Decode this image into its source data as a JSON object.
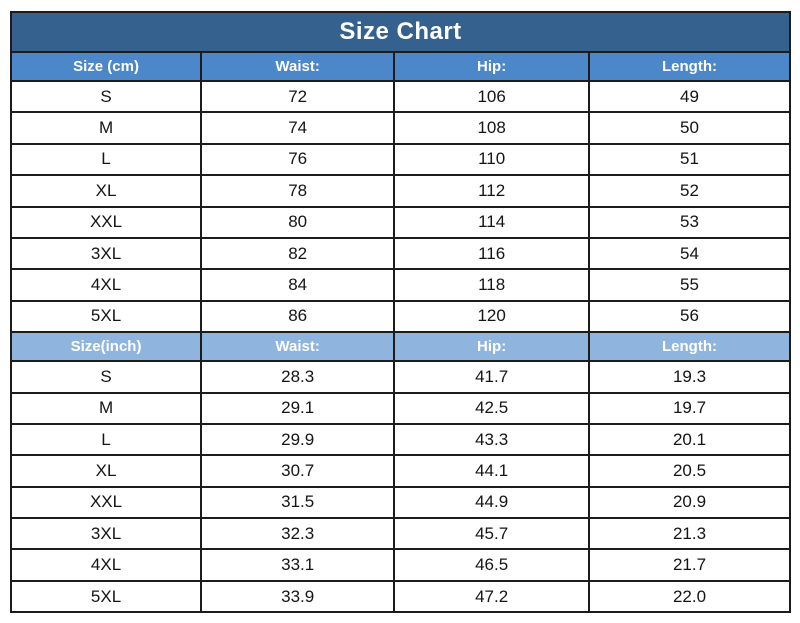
{
  "title": "Size Chart",
  "colors": {
    "title_bg": "#35618E",
    "header_cm_bg": "#4C87C9",
    "header_inch_bg": "#8FB5DF",
    "header_text": "#FFFFFF",
    "cell_text": "#141414",
    "border": "#1C1C1C",
    "row_bg": "#FFFFFF"
  },
  "chart_data": {
    "type": "table",
    "title": "Size Chart",
    "sections": [
      {
        "unit": "cm",
        "columns": [
          "Size (cm)",
          "Waist:",
          "Hip:",
          "Length:"
        ],
        "rows": [
          [
            "S",
            "72",
            "106",
            "49"
          ],
          [
            "M",
            "74",
            "108",
            "50"
          ],
          [
            "L",
            "76",
            "110",
            "51"
          ],
          [
            "XL",
            "78",
            "112",
            "52"
          ],
          [
            "XXL",
            "80",
            "114",
            "53"
          ],
          [
            "3XL",
            "82",
            "116",
            "54"
          ],
          [
            "4XL",
            "84",
            "118",
            "55"
          ],
          [
            "5XL",
            "86",
            "120",
            "56"
          ]
        ]
      },
      {
        "unit": "inch",
        "columns": [
          "Size(inch)",
          "Waist:",
          "Hip:",
          "Length:"
        ],
        "rows": [
          [
            "S",
            "28.3",
            "41.7",
            "19.3"
          ],
          [
            "M",
            "29.1",
            "42.5",
            "19.7"
          ],
          [
            "L",
            "29.9",
            "43.3",
            "20.1"
          ],
          [
            "XL",
            "30.7",
            "44.1",
            "20.5"
          ],
          [
            "XXL",
            "31.5",
            "44.9",
            "20.9"
          ],
          [
            "3XL",
            "32.3",
            "45.7",
            "21.3"
          ],
          [
            "4XL",
            "33.1",
            "46.5",
            "21.7"
          ],
          [
            "5XL",
            "33.9",
            "47.2",
            "22.0"
          ]
        ]
      }
    ]
  }
}
